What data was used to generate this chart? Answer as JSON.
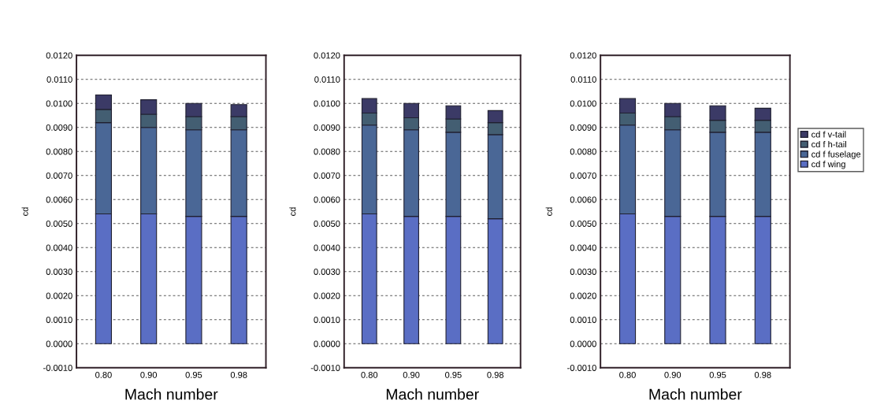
{
  "chart_data": [
    {
      "type": "bar",
      "stacked": true,
      "xlabel": "Mach number",
      "ylabel": "cd",
      "categories": [
        "0.80",
        "0.90",
        "0.95",
        "0.98"
      ],
      "ylim": [
        -0.001,
        0.012
      ],
      "yticks": [
        {
          "value": -0.001,
          "label": "-0.0010"
        },
        {
          "value": 0,
          "label": "0.0000"
        },
        {
          "value": 0.001,
          "label": "0.0010"
        },
        {
          "value": 0.002,
          "label": "0.0020"
        },
        {
          "value": 0.003,
          "label": "0.0030"
        },
        {
          "value": 0.004,
          "label": "0.0040"
        },
        {
          "value": 0.005,
          "label": "0.0050"
        },
        {
          "value": 0.006,
          "label": "0.0060"
        },
        {
          "value": 0.007,
          "label": "0.0070"
        },
        {
          "value": 0.008,
          "label": "0.0080"
        },
        {
          "value": 0.009,
          "label": "0.0090"
        },
        {
          "value": 0.01,
          "label": "0.0100"
        },
        {
          "value": 0.011,
          "label": "0.0110"
        },
        {
          "value": 0.012,
          "label": "0.0120"
        }
      ],
      "grid": "y",
      "legend": false,
      "series": [
        {
          "color": "#5a6ec4",
          "values": [
            0.0054,
            0.0054,
            0.0053,
            0.0053
          ]
        },
        {
          "color": "#4a6796",
          "values": [
            0.0038,
            0.0036,
            0.0036,
            0.0036
          ]
        },
        {
          "color": "#435e72",
          "values": [
            0.00055,
            0.00055,
            0.00055,
            0.00055
          ]
        },
        {
          "color": "#3b3a66",
          "values": [
            0.0006,
            0.0006,
            0.00055,
            0.0005
          ]
        }
      ]
    },
    {
      "type": "bar",
      "stacked": true,
      "xlabel": "Mach number",
      "ylabel": "cd",
      "categories": [
        "0.80",
        "0.90",
        "0.95",
        "0.98"
      ],
      "ylim": [
        -0.001,
        0.012
      ],
      "yticks": [
        {
          "value": -0.001,
          "label": "-0.0010"
        },
        {
          "value": 0,
          "label": "0.0000"
        },
        {
          "value": 0.001,
          "label": "0.0010"
        },
        {
          "value": 0.002,
          "label": "0.0020"
        },
        {
          "value": 0.003,
          "label": "0.0030"
        },
        {
          "value": 0.004,
          "label": "0.0040"
        },
        {
          "value": 0.005,
          "label": "0.0050"
        },
        {
          "value": 0.006,
          "label": "0.0060"
        },
        {
          "value": 0.007,
          "label": "0.0070"
        },
        {
          "value": 0.008,
          "label": "0.0080"
        },
        {
          "value": 0.009,
          "label": "0.0090"
        },
        {
          "value": 0.01,
          "label": "0.0100"
        },
        {
          "value": 0.011,
          "label": "0.0110"
        },
        {
          "value": 0.012,
          "label": "0.0120"
        }
      ],
      "grid": "y",
      "legend": false,
      "series": [
        {
          "color": "#5a6ec4",
          "values": [
            0.0054,
            0.0053,
            0.0053,
            0.0052
          ]
        },
        {
          "color": "#4a6796",
          "values": [
            0.0037,
            0.0036,
            0.0035,
            0.0035
          ]
        },
        {
          "color": "#435e72",
          "values": [
            0.0005,
            0.0005,
            0.00055,
            0.0005
          ]
        },
        {
          "color": "#3b3a66",
          "values": [
            0.0006,
            0.0006,
            0.00055,
            0.0005
          ]
        }
      ]
    },
    {
      "type": "bar",
      "stacked": true,
      "xlabel": "Mach number",
      "ylabel": "cd",
      "categories": [
        "0.80",
        "0.90",
        "0.95",
        "0.98"
      ],
      "ylim": [
        -0.001,
        0.012
      ],
      "yticks": [
        {
          "value": -0.001,
          "label": "-0.0010"
        },
        {
          "value": 0,
          "label": "0.0000"
        },
        {
          "value": 0.001,
          "label": "0.0010"
        },
        {
          "value": 0.002,
          "label": "0.0020"
        },
        {
          "value": 0.003,
          "label": "0.0030"
        },
        {
          "value": 0.004,
          "label": "0.0040"
        },
        {
          "value": 0.005,
          "label": "0.0050"
        },
        {
          "value": 0.006,
          "label": "0.0060"
        },
        {
          "value": 0.007,
          "label": "0.0070"
        },
        {
          "value": 0.008,
          "label": "0.0080"
        },
        {
          "value": 0.009,
          "label": "0.0090"
        },
        {
          "value": 0.01,
          "label": "0.0100"
        },
        {
          "value": 0.011,
          "label": "0.0110"
        },
        {
          "value": 0.012,
          "label": "0.0120"
        }
      ],
      "grid": "y",
      "legend": "right",
      "series": [
        {
          "name": "cd f wing",
          "color": "#5a6ec4",
          "values": [
            0.0054,
            0.0053,
            0.0053,
            0.0053
          ]
        },
        {
          "name": "cd f fuselage",
          "color": "#4a6796",
          "values": [
            0.0037,
            0.0036,
            0.0035,
            0.0035
          ]
        },
        {
          "name": "cd f h-tail",
          "color": "#435e72",
          "values": [
            0.0005,
            0.00055,
            0.0005,
            0.0005
          ]
        },
        {
          "name": "cd f v-tail",
          "color": "#3b3a66",
          "values": [
            0.0006,
            0.00055,
            0.0006,
            0.0005
          ]
        }
      ]
    }
  ]
}
